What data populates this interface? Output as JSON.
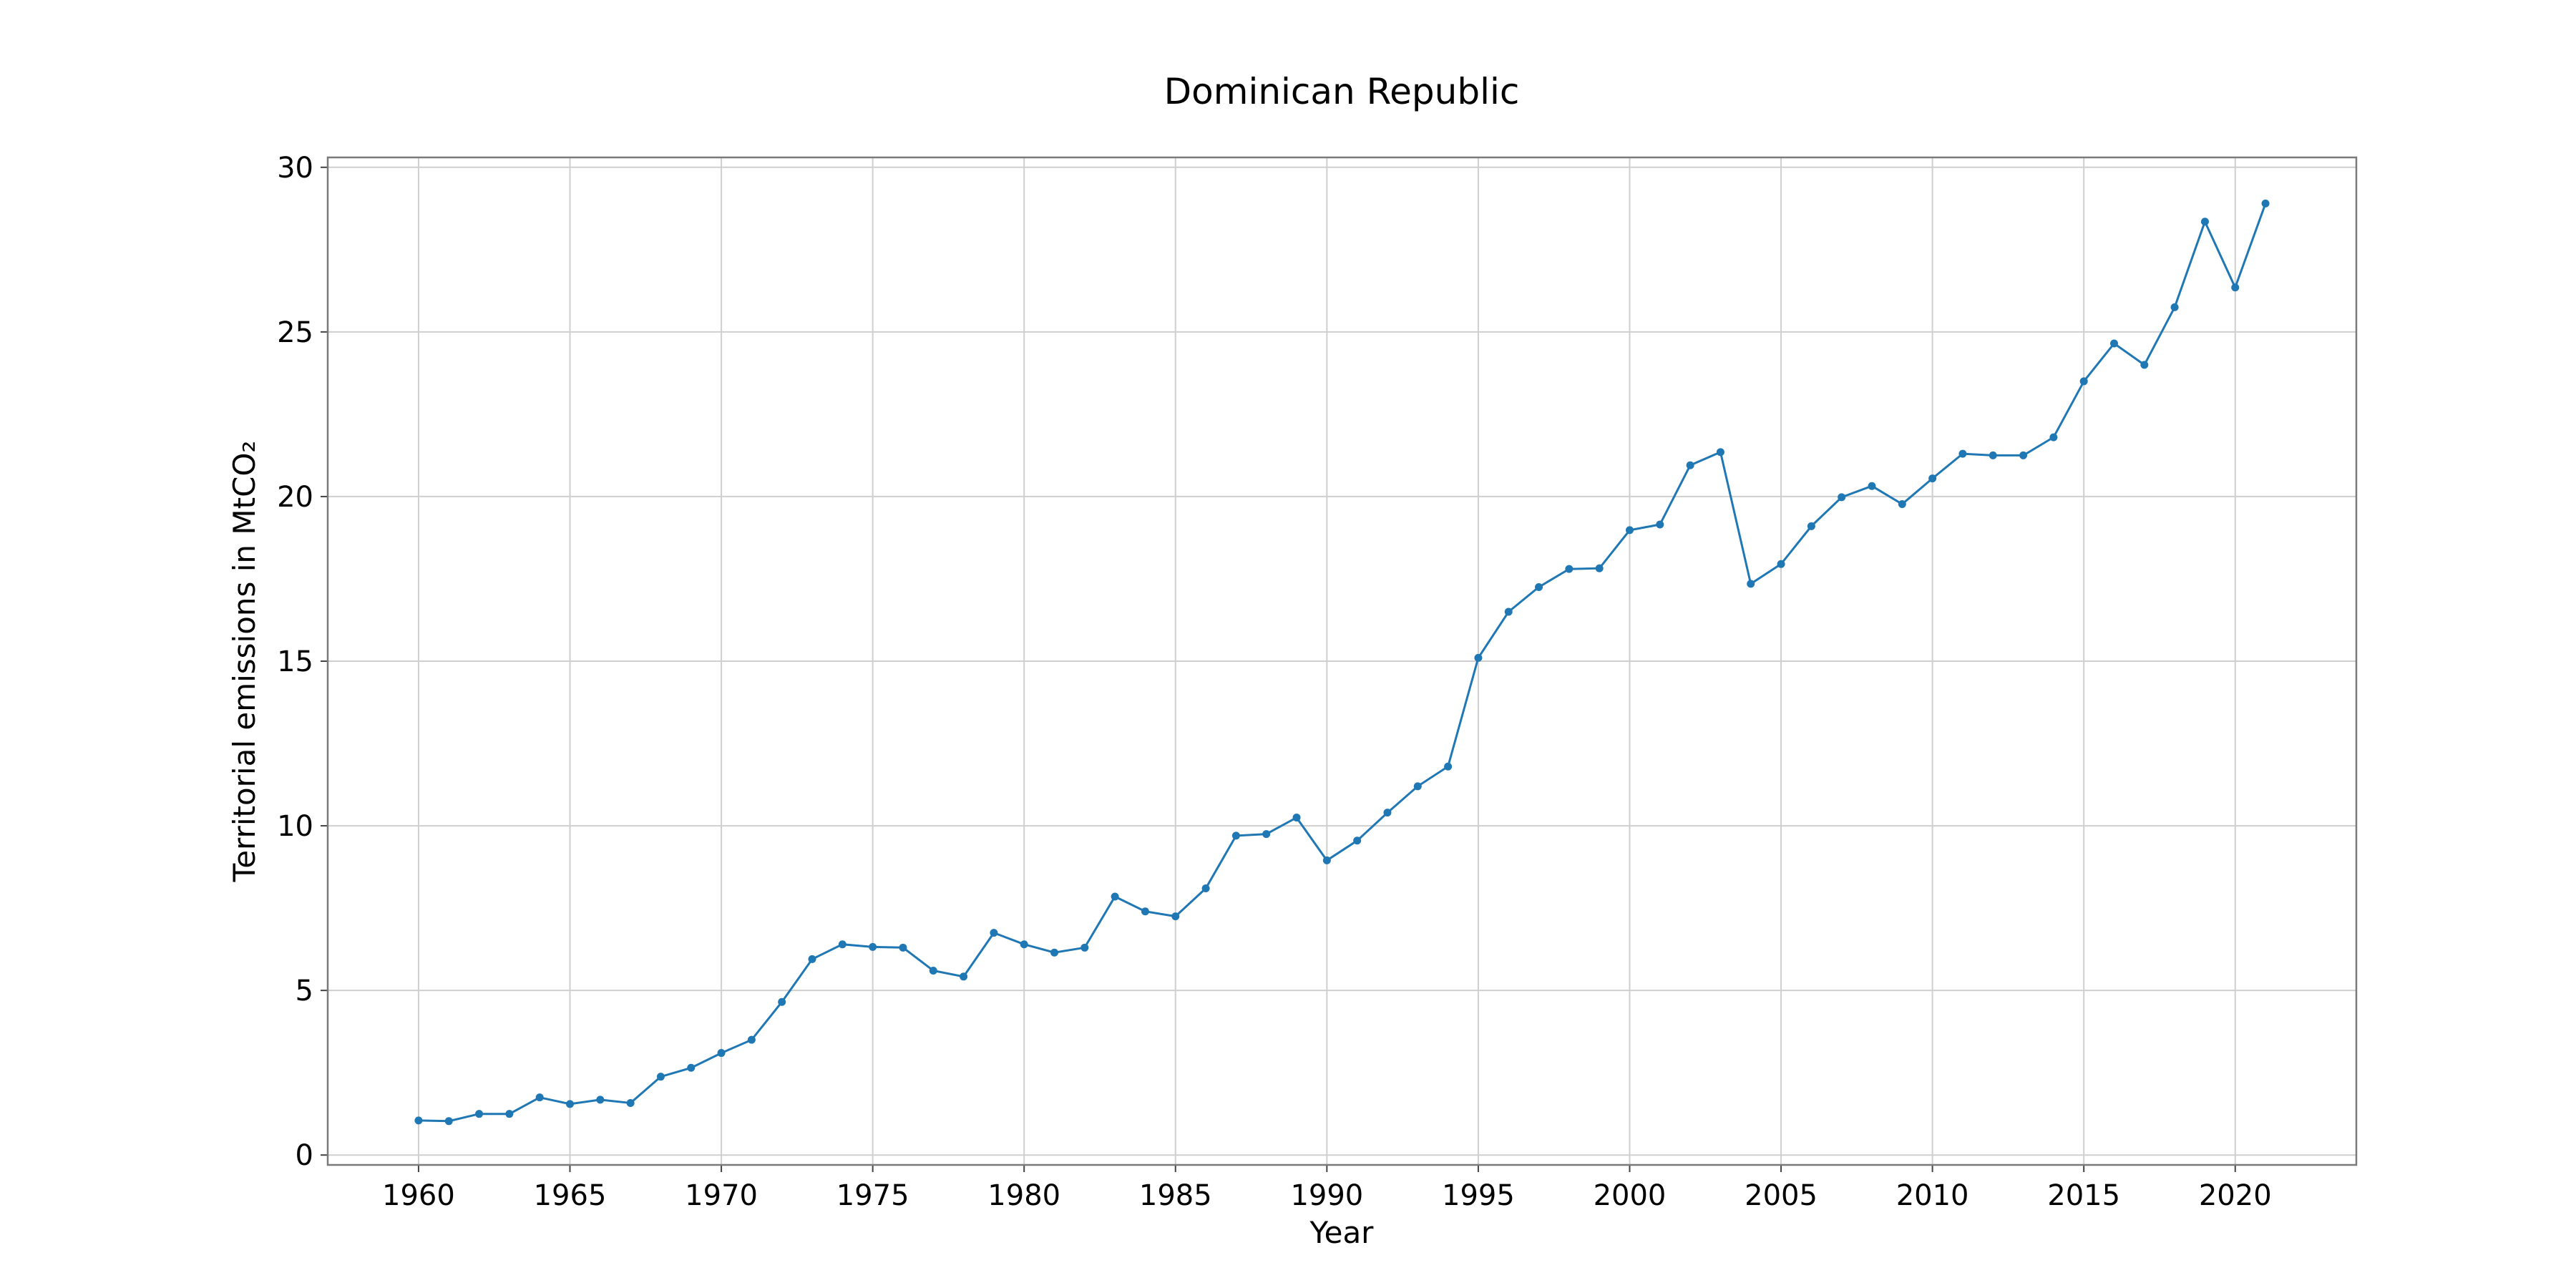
{
  "chart_data": {
    "type": "line",
    "title": "Dominican Republic",
    "xlabel": "Year",
    "ylabel": "Territorial emissions in MtCO₂",
    "xlim": [
      1957,
      2024
    ],
    "ylim": [
      -0.3,
      30.3
    ],
    "xticks": [
      1960,
      1965,
      1970,
      1975,
      1980,
      1985,
      1990,
      1995,
      2000,
      2005,
      2010,
      2015,
      2020
    ],
    "yticks": [
      0,
      5,
      10,
      15,
      20,
      25,
      30
    ],
    "grid": true,
    "colors": {
      "series": "#1f77b4"
    },
    "x": [
      1960,
      1961,
      1962,
      1963,
      1964,
      1965,
      1966,
      1967,
      1968,
      1969,
      1970,
      1971,
      1972,
      1973,
      1974,
      1975,
      1976,
      1977,
      1978,
      1979,
      1980,
      1981,
      1982,
      1983,
      1984,
      1985,
      1986,
      1987,
      1988,
      1989,
      1990,
      1991,
      1992,
      1993,
      1994,
      1995,
      1996,
      1997,
      1998,
      1999,
      2000,
      2001,
      2002,
      2003,
      2004,
      2005,
      2006,
      2007,
      2008,
      2009,
      2010,
      2011,
      2012,
      2013,
      2014,
      2015,
      2016,
      2017,
      2018,
      2019,
      2020,
      2021
    ],
    "series": [
      {
        "values": [
          1.05,
          1.03,
          1.25,
          1.25,
          1.75,
          1.55,
          1.68,
          1.58,
          2.38,
          2.65,
          3.1,
          3.5,
          4.65,
          5.95,
          6.4,
          6.32,
          6.3,
          5.6,
          5.42,
          6.75,
          6.4,
          6.15,
          6.3,
          7.85,
          7.4,
          7.25,
          8.1,
          9.7,
          9.75,
          10.25,
          8.95,
          9.55,
          10.4,
          11.2,
          11.8,
          15.1,
          16.5,
          17.25,
          17.8,
          17.82,
          18.98,
          19.15,
          20.95,
          21.35,
          17.35,
          17.95,
          19.1,
          19.98,
          20.32,
          19.77,
          20.55,
          21.3,
          21.25,
          21.25,
          21.8,
          23.5,
          24.65,
          24.0,
          25.75,
          28.35,
          26.35,
          28.9
        ]
      }
    ]
  }
}
